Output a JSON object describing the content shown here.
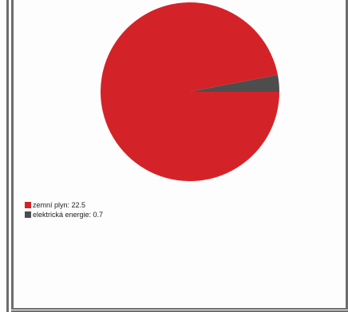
{
  "chart_data": {
    "type": "pie",
    "title": "",
    "slices": [
      {
        "label": "zemní plyn",
        "value": 22.5,
        "color": "#d42328",
        "legend_text": "zemní plyn: 22.5"
      },
      {
        "label": "elektrická energie",
        "value": 0.7,
        "color": "#4d4d4d",
        "legend_text": "elektrická energie: 0.7"
      }
    ],
    "legend": {
      "placement": "bottom-left"
    }
  }
}
